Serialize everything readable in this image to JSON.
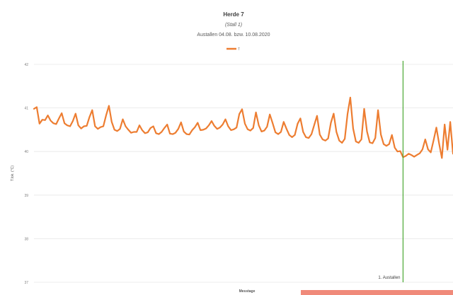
{
  "chart_data": {
    "type": "line",
    "title": "Herde 7",
    "subtitle": "(Stall 1)",
    "subtitle2": "Austallen 04.08. bzw. 10.08.2020",
    "xlabel": "Messtage",
    "ylabel": "T.lok. (°C)",
    "legend": {
      "position": "top-center"
    },
    "grid": true,
    "ylim": [
      37,
      42
    ],
    "yticks": [
      "42",
      "41",
      "40",
      "39",
      "38",
      "37"
    ],
    "annotation": {
      "label": "1. Austallen",
      "x_index": 133
    },
    "series": [
      {
        "name": "T",
        "color": "#ed7d31",
        "values": [
          40.98,
          41.02,
          40.64,
          40.73,
          40.72,
          40.83,
          40.71,
          40.65,
          40.63,
          40.76,
          40.88,
          40.65,
          40.6,
          40.58,
          40.7,
          40.87,
          40.6,
          40.53,
          40.58,
          40.59,
          40.79,
          40.95,
          40.58,
          40.52,
          40.56,
          40.58,
          40.83,
          41.05,
          40.68,
          40.5,
          40.47,
          40.52,
          40.74,
          40.58,
          40.5,
          40.43,
          40.45,
          40.45,
          40.6,
          40.49,
          40.42,
          40.44,
          40.54,
          40.58,
          40.42,
          40.4,
          40.45,
          40.54,
          40.62,
          40.41,
          40.4,
          40.43,
          40.52,
          40.67,
          40.46,
          40.4,
          40.39,
          40.49,
          40.56,
          40.66,
          40.49,
          40.5,
          40.53,
          40.6,
          40.7,
          40.59,
          40.52,
          40.55,
          40.62,
          40.74,
          40.58,
          40.49,
          40.51,
          40.55,
          40.86,
          40.97,
          40.64,
          40.51,
          40.48,
          40.54,
          40.9,
          40.6,
          40.46,
          40.48,
          40.57,
          40.85,
          40.65,
          40.44,
          40.4,
          40.45,
          40.68,
          40.52,
          40.38,
          40.33,
          40.38,
          40.64,
          40.76,
          40.45,
          40.33,
          40.31,
          40.4,
          40.61,
          40.82,
          40.39,
          40.28,
          40.25,
          40.3,
          40.66,
          40.87,
          40.45,
          40.25,
          40.2,
          40.29,
          40.86,
          41.24,
          40.53,
          40.23,
          40.2,
          40.28,
          40.98,
          40.46,
          40.21,
          40.19,
          40.31,
          40.95,
          40.39,
          40.17,
          40.13,
          40.17,
          40.38,
          40.09,
          40.0,
          40.01,
          39.87,
          39.9,
          39.95,
          39.92,
          39.88,
          39.92,
          39.96,
          40.05,
          40.28,
          40.05,
          39.98,
          40.26,
          40.55,
          40.18,
          39.85,
          40.62,
          40.04,
          40.68,
          39.95
        ]
      }
    ]
  }
}
